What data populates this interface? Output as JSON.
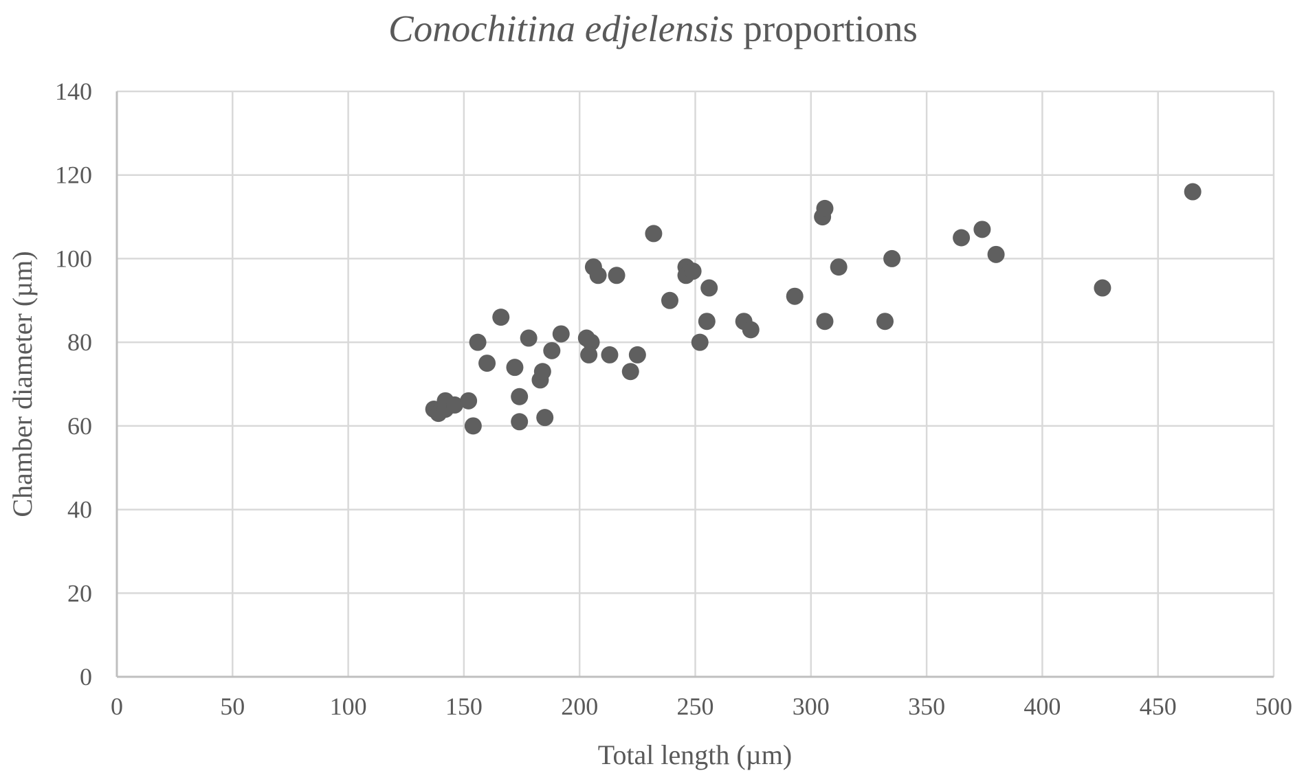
{
  "chart_data": {
    "type": "scatter",
    "title": {
      "italic_part": "Conochitina edjelensis",
      "normal_part": " proportions"
    },
    "xlabel": "Total length  (µm)",
    "ylabel": "Chamber diameter (µm)",
    "xlim": [
      0,
      500
    ],
    "ylim": [
      0,
      140
    ],
    "xticks": [
      0,
      50,
      100,
      150,
      200,
      250,
      300,
      350,
      400,
      450,
      500
    ],
    "yticks": [
      0,
      20,
      40,
      60,
      80,
      100,
      120,
      140
    ],
    "grid": true,
    "legend": "none",
    "marker_color": "#5f5f5f",
    "series": [
      {
        "name": "Conochitina edjelensis",
        "points": [
          [
            137,
            64
          ],
          [
            139,
            63
          ],
          [
            142,
            66
          ],
          [
            142,
            64
          ],
          [
            146,
            65
          ],
          [
            152,
            66
          ],
          [
            154,
            60
          ],
          [
            156,
            80
          ],
          [
            160,
            75
          ],
          [
            166,
            86
          ],
          [
            172,
            74
          ],
          [
            174,
            67
          ],
          [
            174,
            61
          ],
          [
            178,
            81
          ],
          [
            183,
            71
          ],
          [
            184,
            73
          ],
          [
            185,
            62
          ],
          [
            188,
            78
          ],
          [
            192,
            82
          ],
          [
            203,
            81
          ],
          [
            205,
            80
          ],
          [
            204,
            77
          ],
          [
            206,
            98
          ],
          [
            208,
            96
          ],
          [
            213,
            77
          ],
          [
            216,
            96
          ],
          [
            222,
            73
          ],
          [
            225,
            77
          ],
          [
            232,
            106
          ],
          [
            239,
            90
          ],
          [
            246,
            98
          ],
          [
            246,
            96
          ],
          [
            249,
            97
          ],
          [
            252,
            80
          ],
          [
            255,
            85
          ],
          [
            256,
            93
          ],
          [
            271,
            85
          ],
          [
            274,
            83
          ],
          [
            293,
            91
          ],
          [
            305,
            110
          ],
          [
            306,
            112
          ],
          [
            306,
            85
          ],
          [
            312,
            98
          ],
          [
            332,
            85
          ],
          [
            335,
            100
          ],
          [
            365,
            105
          ],
          [
            374,
            107
          ],
          [
            380,
            101
          ],
          [
            426,
            93
          ],
          [
            465,
            116
          ]
        ]
      }
    ]
  }
}
